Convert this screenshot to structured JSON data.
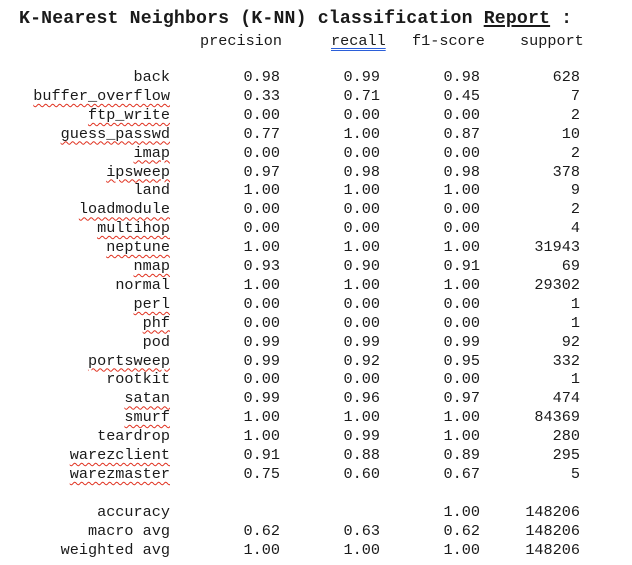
{
  "title": {
    "prefix": "K-Nearest Neighbors (K-NN) classification ",
    "report": "Report",
    "suffix": " :"
  },
  "headers": {
    "precision": "precision",
    "recall": "recall",
    "f1": "f1-score",
    "support": "support"
  },
  "classes": [
    {
      "label": "back",
      "precision": "0.98",
      "recall": "0.99",
      "f1": "0.98",
      "support": "628",
      "squiggle": false
    },
    {
      "label": "buffer_overflow",
      "precision": "0.33",
      "recall": "0.71",
      "f1": "0.45",
      "support": "7",
      "squiggle": true
    },
    {
      "label": "ftp_write",
      "precision": "0.00",
      "recall": "0.00",
      "f1": "0.00",
      "support": "2",
      "squiggle": true
    },
    {
      "label": "guess_passwd",
      "precision": "0.77",
      "recall": "1.00",
      "f1": "0.87",
      "support": "10",
      "squiggle": true
    },
    {
      "label": "imap",
      "precision": "0.00",
      "recall": "0.00",
      "f1": "0.00",
      "support": "2",
      "squiggle": true
    },
    {
      "label": "ipsweep",
      "precision": "0.97",
      "recall": "0.98",
      "f1": "0.98",
      "support": "378",
      "squiggle": true
    },
    {
      "label": "land",
      "precision": "1.00",
      "recall": "1.00",
      "f1": "1.00",
      "support": "9",
      "squiggle": false
    },
    {
      "label": "loadmodule",
      "precision": "0.00",
      "recall": "0.00",
      "f1": "0.00",
      "support": "2",
      "squiggle": true
    },
    {
      "label": "multihop",
      "precision": "0.00",
      "recall": "0.00",
      "f1": "0.00",
      "support": "4",
      "squiggle": true
    },
    {
      "label": "neptune",
      "precision": "1.00",
      "recall": "1.00",
      "f1": "1.00",
      "support": "31943",
      "squiggle": true
    },
    {
      "label": "nmap",
      "precision": "0.93",
      "recall": "0.90",
      "f1": "0.91",
      "support": "69",
      "squiggle": true
    },
    {
      "label": "normal",
      "precision": "1.00",
      "recall": "1.00",
      "f1": "1.00",
      "support": "29302",
      "squiggle": false
    },
    {
      "label": "perl",
      "precision": "0.00",
      "recall": "0.00",
      "f1": "0.00",
      "support": "1",
      "squiggle": true
    },
    {
      "label": "phf",
      "precision": "0.00",
      "recall": "0.00",
      "f1": "0.00",
      "support": "1",
      "squiggle": true
    },
    {
      "label": "pod",
      "precision": "0.99",
      "recall": "0.99",
      "f1": "0.99",
      "support": "92",
      "squiggle": false
    },
    {
      "label": "portsweep",
      "precision": "0.99",
      "recall": "0.92",
      "f1": "0.95",
      "support": "332",
      "squiggle": true
    },
    {
      "label": "rootkit",
      "precision": "0.00",
      "recall": "0.00",
      "f1": "0.00",
      "support": "1",
      "squiggle": false
    },
    {
      "label": "satan",
      "precision": "0.99",
      "recall": "0.96",
      "f1": "0.97",
      "support": "474",
      "squiggle": true
    },
    {
      "label": "smurf",
      "precision": "1.00",
      "recall": "1.00",
      "f1": "1.00",
      "support": "84369",
      "squiggle": true
    },
    {
      "label": "teardrop",
      "precision": "1.00",
      "recall": "0.99",
      "f1": "1.00",
      "support": "280",
      "squiggle": false
    },
    {
      "label": "warezclient",
      "precision": "0.91",
      "recall": "0.88",
      "f1": "0.89",
      "support": "295",
      "squiggle": true
    },
    {
      "label": "warezmaster",
      "precision": "0.75",
      "recall": "0.60",
      "f1": "0.67",
      "support": "5",
      "squiggle": true
    }
  ],
  "summary": [
    {
      "label": "accuracy",
      "precision": "",
      "recall": "",
      "f1": "1.00",
      "support": "148206"
    },
    {
      "label": "macro avg",
      "precision": "0.62",
      "recall": "0.63",
      "f1": "0.62",
      "support": "148206"
    },
    {
      "label": "weighted avg",
      "precision": "1.00",
      "recall": "1.00",
      "f1": "1.00",
      "support": "148206"
    }
  ],
  "colors": {
    "spellcheck_squiggle": "#e0301e",
    "grammar_double_underline": "#2b5fd9"
  }
}
